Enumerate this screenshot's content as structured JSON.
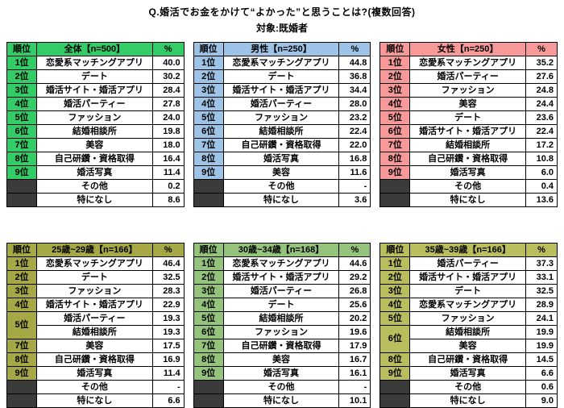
{
  "chart_data": {
    "type": "table",
    "title": "Q.婚活でお金をかけて“よかった”と思うことは?(複数回答)",
    "subtitle": "対象:既婚者",
    "rank_header": "順位",
    "percent_header": "%",
    "no_rank_color": "#3b3b3b",
    "groups": [
      {
        "label": "全体【n=500】",
        "color": "#33cc66",
        "rows": [
          [
            "1位",
            "恋愛系マッチングアプリ",
            "40.0"
          ],
          [
            "2位",
            "デート",
            "30.2"
          ],
          [
            "3位",
            "婚活サイト・婚活アプリ",
            "28.4"
          ],
          [
            "4位",
            "婚活パーティー",
            "27.8"
          ],
          [
            "5位",
            "ファッション",
            "24.0"
          ],
          [
            "6位",
            "結婚相談所",
            "19.8"
          ],
          [
            "7位",
            "美容",
            "18.0"
          ],
          [
            "8位",
            "自己研鑽・資格取得",
            "16.4"
          ],
          [
            "9位",
            "婚活写真",
            "11.4"
          ],
          [
            "",
            "その他",
            "0.2"
          ],
          [
            "",
            "特になし",
            "8.6"
          ]
        ]
      },
      {
        "label": "男性【n=250】",
        "color": "#9dc3e6",
        "rows": [
          [
            "1位",
            "恋愛系マッチングアプリ",
            "44.8"
          ],
          [
            "2位",
            "デート",
            "36.8"
          ],
          [
            "3位",
            "婚活サイト・婚活アプリ",
            "34.4"
          ],
          [
            "4位",
            "婚活パーティー",
            "28.0"
          ],
          [
            "5位",
            "ファッション",
            "23.2"
          ],
          [
            "6位",
            "結婚相談所",
            "22.4"
          ],
          [
            "7位",
            "自己研鑽・資格取得",
            "22.0"
          ],
          [
            "8位",
            "婚活写真",
            "16.8"
          ],
          [
            "9位",
            "美容",
            "11.6"
          ],
          [
            "",
            "その他",
            "-"
          ],
          [
            "",
            "特になし",
            "3.6"
          ]
        ]
      },
      {
        "label": "女性【n=250】",
        "color": "#f79999",
        "rows": [
          [
            "1位",
            "恋愛系マッチングアプリ",
            "35.2"
          ],
          [
            "2位",
            "婚活パーティー",
            "27.6"
          ],
          [
            "3位",
            "ファッション",
            "24.8"
          ],
          [
            "4位",
            "美容",
            "24.4"
          ],
          [
            "5位",
            "デート",
            "23.6"
          ],
          [
            "6位",
            "婚活サイト・婚活アプリ",
            "22.4"
          ],
          [
            "7位",
            "結婚相談所",
            "17.2"
          ],
          [
            "8位",
            "自己研鑽・資格取得",
            "10.8"
          ],
          [
            "9位",
            "婚活写真",
            "6.0"
          ],
          [
            "",
            "その他",
            "0.4"
          ],
          [
            "",
            "特になし",
            "13.6"
          ]
        ]
      },
      {
        "label": "25歳~29歳【n=166】",
        "color": "#a6a845",
        "rows": [
          [
            "1位",
            "恋愛系マッチングアプリ",
            "46.4"
          ],
          [
            "2位",
            "デート",
            "32.5"
          ],
          [
            "3位",
            "ファッション",
            "28.3"
          ],
          [
            "4位",
            "婚活サイト・婚活アプリ",
            "22.9"
          ],
          [
            "5位",
            "婚活パーティー",
            "19.3"
          ],
          [
            "^",
            "結婚相談所",
            "19.3"
          ],
          [
            "7位",
            "美容",
            "17.5"
          ],
          [
            "8位",
            "自己研鑽・資格取得",
            "16.9"
          ],
          [
            "9位",
            "婚活写真",
            "11.4"
          ],
          [
            "",
            "その他",
            "-"
          ],
          [
            "",
            "特になし",
            "6.6"
          ]
        ]
      },
      {
        "label": "30歳~34歳【n=168】",
        "color": "#94c47b",
        "rows": [
          [
            "1位",
            "恋愛系マッチングアプリ",
            "44.6"
          ],
          [
            "2位",
            "婚活サイト・婚活アプリ",
            "29.2"
          ],
          [
            "3位",
            "婚活パーティー",
            "26.8"
          ],
          [
            "4位",
            "デート",
            "25.6"
          ],
          [
            "5位",
            "結婚相談所",
            "20.2"
          ],
          [
            "6位",
            "ファッション",
            "19.6"
          ],
          [
            "7位",
            "自己研鑽・資格取得",
            "17.9"
          ],
          [
            "8位",
            "美容",
            "16.7"
          ],
          [
            "9位",
            "婚活写真",
            "16.1"
          ],
          [
            "",
            "その他",
            "-"
          ],
          [
            "",
            "特になし",
            "10.1"
          ]
        ]
      },
      {
        "label": "35歳~39歳【n=166】",
        "color": "#babd5e",
        "rows": [
          [
            "1位",
            "婚活パーティー",
            "37.3"
          ],
          [
            "2位",
            "婚活サイト・婚活アプリ",
            "33.1"
          ],
          [
            "3位",
            "デート",
            "32.5"
          ],
          [
            "4位",
            "恋愛系マッチングアプリ",
            "28.9"
          ],
          [
            "5位",
            "ファッション",
            "24.1"
          ],
          [
            "6位",
            "結婚相談所",
            "19.9"
          ],
          [
            "^",
            "美容",
            "19.9"
          ],
          [
            "8位",
            "自己研鑽・資格取得",
            "14.5"
          ],
          [
            "9位",
            "婚活写真",
            "6.6"
          ],
          [
            "",
            "その他",
            "0.6"
          ],
          [
            "",
            "特になし",
            "9.0"
          ]
        ]
      }
    ]
  }
}
